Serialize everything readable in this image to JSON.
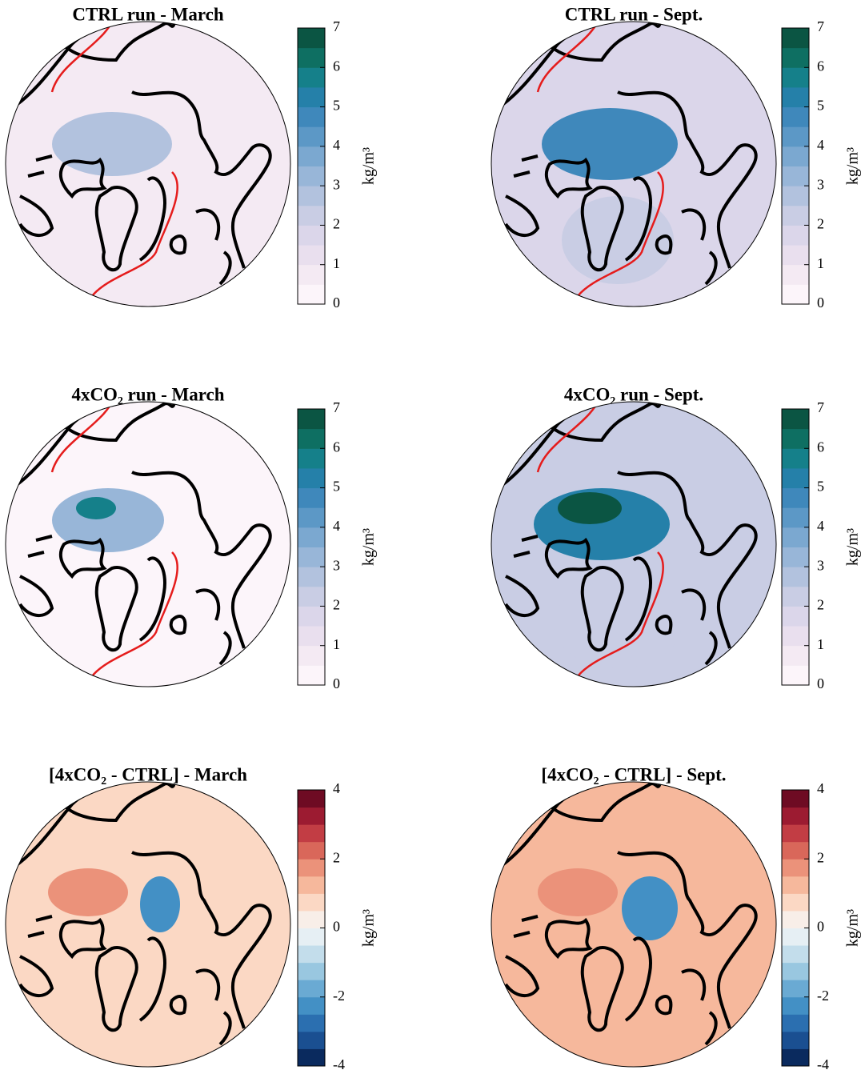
{
  "chart_data": [
    {
      "type": "polar-map",
      "title": "CTRL run - March",
      "colorbar_label": "kg/m³",
      "ylim": [
        0,
        7
      ],
      "yticks": [
        0,
        1,
        2,
        3,
        4,
        5,
        6,
        7
      ],
      "colors": [
        "#fcf5fa",
        "#f4eaf3",
        "#e9dfee",
        "#dbd6ea",
        "#c9cde4",
        "#b2c2de",
        "#98b6d8",
        "#7ba8d0",
        "#5c98c6",
        "#3f88bb",
        "#2580a9",
        "#15808a",
        "#0e6f62",
        "#0b5543"
      ]
    },
    {
      "type": "polar-map",
      "title": "CTRL run - Sept.",
      "colorbar_label": "kg/m³",
      "ylim": [
        0,
        7
      ],
      "yticks": [
        0,
        1,
        2,
        3,
        4,
        5,
        6,
        7
      ],
      "colors": [
        "#fcf5fa",
        "#f4eaf3",
        "#e9dfee",
        "#dbd6ea",
        "#c9cde4",
        "#b2c2de",
        "#98b6d8",
        "#7ba8d0",
        "#5c98c6",
        "#3f88bb",
        "#2580a9",
        "#15808a",
        "#0e6f62",
        "#0b5543"
      ]
    },
    {
      "type": "polar-map",
      "title": "4xCO₂ run - March",
      "colorbar_label": "kg/m³",
      "ylim": [
        0,
        7
      ],
      "yticks": [
        0,
        1,
        2,
        3,
        4,
        5,
        6,
        7
      ],
      "colors": [
        "#fcf5fa",
        "#f4eaf3",
        "#e9dfee",
        "#dbd6ea",
        "#c9cde4",
        "#b2c2de",
        "#98b6d8",
        "#7ba8d0",
        "#5c98c6",
        "#3f88bb",
        "#2580a9",
        "#15808a",
        "#0e6f62",
        "#0b5543"
      ]
    },
    {
      "type": "polar-map",
      "title": "4xCO₂ run - Sept.",
      "colorbar_label": "kg/m³",
      "ylim": [
        0,
        7
      ],
      "yticks": [
        0,
        1,
        2,
        3,
        4,
        5,
        6,
        7
      ],
      "colors": [
        "#fcf5fa",
        "#f4eaf3",
        "#e9dfee",
        "#dbd6ea",
        "#c9cde4",
        "#b2c2de",
        "#98b6d8",
        "#7ba8d0",
        "#5c98c6",
        "#3f88bb",
        "#2580a9",
        "#15808a",
        "#0e6f62",
        "#0b5543"
      ]
    },
    {
      "type": "polar-map",
      "title": "[4xCO₂ - CTRL] - March",
      "colorbar_label": "kg/m³",
      "ylim": [
        -4,
        4
      ],
      "yticks": [
        -4,
        -2,
        0,
        2,
        4
      ],
      "colors": [
        "#0a2a5e",
        "#1a4f91",
        "#2b6fb0",
        "#4390c5",
        "#6aaad3",
        "#99c7e0",
        "#c3ddeb",
        "#e6eff4",
        "#f8eee8",
        "#fbd8c4",
        "#f6b89c",
        "#eb927a",
        "#d9675a",
        "#c23d44",
        "#9c1b31",
        "#6e0b23"
      ]
    },
    {
      "type": "polar-map",
      "title": "[4xCO₂ - CTRL] - Sept.",
      "colorbar_label": "kg/m³",
      "ylim": [
        -4,
        4
      ],
      "yticks": [
        -4,
        -2,
        0,
        2,
        4
      ],
      "colors": [
        "#0a2a5e",
        "#1a4f91",
        "#2b6fb0",
        "#4390c5",
        "#6aaad3",
        "#99c7e0",
        "#c3ddeb",
        "#e6eff4",
        "#f8eee8",
        "#fbd8c4",
        "#f6b89c",
        "#eb927a",
        "#d9675a",
        "#c23d44",
        "#9c1b31",
        "#6e0b23"
      ]
    }
  ]
}
